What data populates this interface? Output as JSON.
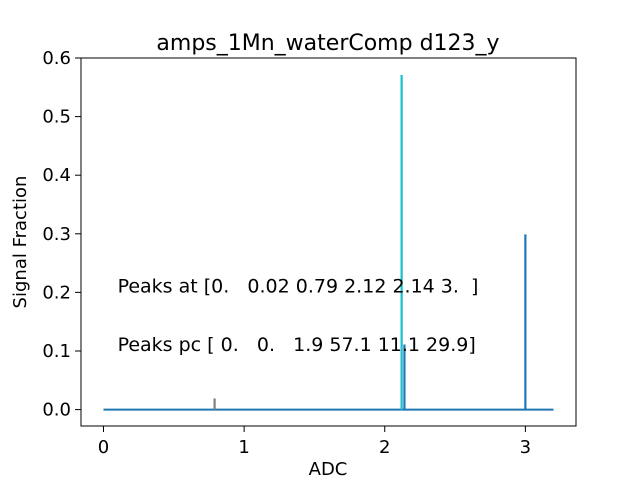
{
  "chart_data": {
    "type": "line",
    "title": "amps_1Mn_waterComp d123_y",
    "xlabel": "ADC",
    "ylabel": "Signal Fraction",
    "xlim": [
      -0.16,
      3.36
    ],
    "ylim": [
      -0.028,
      0.6
    ],
    "xticks": [
      "0",
      "1",
      "2",
      "3"
    ],
    "yticks": [
      "0.0",
      "0.1",
      "0.2",
      "0.3",
      "0.4",
      "0.5",
      "0.6"
    ],
    "grid": false,
    "baseline": {
      "x": [
        0,
        3.2
      ],
      "y": [
        0,
        0
      ],
      "color": "#1f77b4"
    },
    "series": [
      {
        "x": 0.79,
        "y": 0.019,
        "color": "#7f7f7f"
      },
      {
        "x": 2.12,
        "y": 0.571,
        "color": "#17becf"
      },
      {
        "x": 2.14,
        "y": 0.111,
        "color": "#1f77b4"
      },
      {
        "x": 3.0,
        "y": 0.299,
        "color": "#1f77b4"
      }
    ],
    "annotations": [
      {
        "text": "Peaks at [0.   0.02 0.79 2.12 2.14 3.  ]",
        "x": 0.1,
        "y": 0.2
      },
      {
        "text": "Peaks pc [ 0.   0.   1.9 57.1 11.1 29.9]",
        "x": 0.1,
        "y": 0.1
      }
    ]
  }
}
